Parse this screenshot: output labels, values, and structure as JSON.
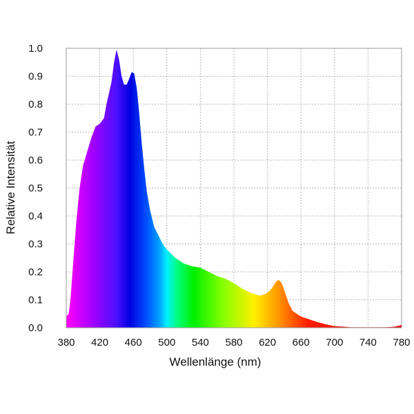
{
  "chart_data": {
    "type": "area",
    "xlabel": "Wellenlänge (nm)",
    "ylabel": "Relative Intensität",
    "xlim": [
      380,
      780
    ],
    "ylim": [
      0,
      1.0
    ],
    "x_ticks": [
      "380",
      "420",
      "460",
      "500",
      "540",
      "580",
      "620",
      "660",
      "700",
      "740",
      "780"
    ],
    "y_ticks": [
      "0.0",
      "0.1",
      "0.2",
      "0.3",
      "0.4",
      "0.5",
      "0.6",
      "0.7",
      "0.8",
      "0.9",
      "1.0"
    ],
    "grid": true,
    "fill": "spectral-gradient",
    "series": [
      {
        "x": [
          380,
          383,
          385,
          388,
          392,
          396,
          400,
          405,
          410,
          415,
          420,
          425,
          428,
          431,
          434,
          437,
          440,
          443,
          446,
          449,
          452,
          455,
          458,
          461,
          464,
          467,
          470,
          473,
          476,
          480,
          485,
          490,
          495,
          500,
          510,
          520,
          530,
          540,
          550,
          560,
          570,
          580,
          590,
          600,
          610,
          615,
          620,
          625,
          628,
          631,
          634,
          637,
          640,
          645,
          650,
          660,
          670,
          680,
          690,
          700,
          710,
          720,
          730,
          740,
          750,
          760,
          770,
          775,
          780
        ],
        "y": [
          0.04,
          0.05,
          0.1,
          0.22,
          0.38,
          0.5,
          0.58,
          0.63,
          0.68,
          0.72,
          0.73,
          0.75,
          0.8,
          0.84,
          0.88,
          0.95,
          0.995,
          0.96,
          0.9,
          0.87,
          0.87,
          0.89,
          0.915,
          0.91,
          0.86,
          0.77,
          0.66,
          0.57,
          0.49,
          0.42,
          0.36,
          0.33,
          0.3,
          0.28,
          0.25,
          0.23,
          0.22,
          0.215,
          0.2,
          0.185,
          0.175,
          0.16,
          0.14,
          0.125,
          0.115,
          0.118,
          0.125,
          0.14,
          0.155,
          0.168,
          0.17,
          0.16,
          0.135,
          0.09,
          0.06,
          0.04,
          0.03,
          0.02,
          0.012,
          0.006,
          0.004,
          0.002,
          0.002,
          0.002,
          0.002,
          0.002,
          0.003,
          0.006,
          0.01
        ]
      }
    ]
  }
}
